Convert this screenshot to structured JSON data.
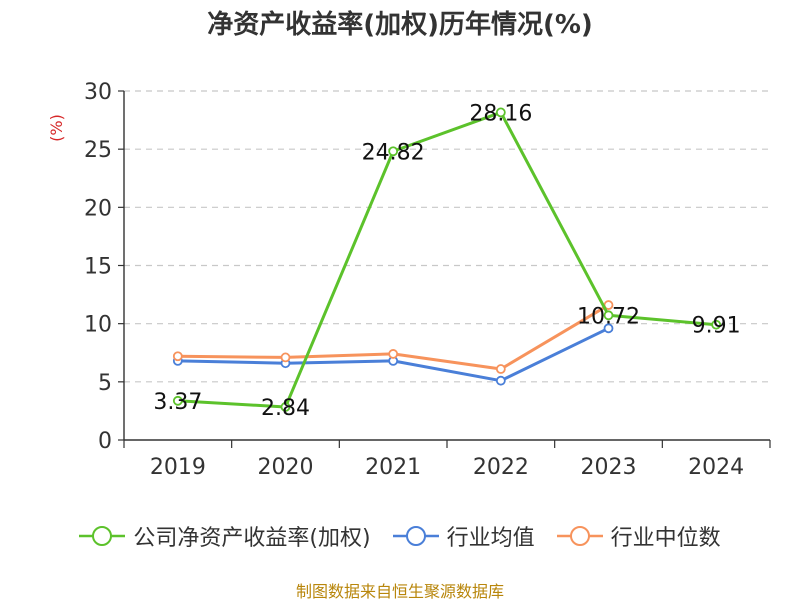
{
  "chart_data": {
    "type": "line",
    "title": "净资产收益率(加权)历年情况(%)",
    "ylabel": "(%)",
    "xlabel": "",
    "categories": [
      "2019",
      "2020",
      "2021",
      "2022",
      "2023",
      "2024"
    ],
    "ylim": [
      0,
      30
    ],
    "yticks": [
      0,
      5,
      10,
      15,
      20,
      25,
      30
    ],
    "grid": true,
    "series": [
      {
        "name": "公司净资产收益率(加权)",
        "color": "#5cc22b",
        "values": [
          3.37,
          2.84,
          24.82,
          28.16,
          10.72,
          9.91
        ],
        "labels": [
          "3.37",
          "2.84",
          "24.82",
          "28.16",
          "10.72",
          "9.91"
        ]
      },
      {
        "name": "行业均值",
        "color": "#4a7fd8",
        "values": [
          6.8,
          6.6,
          6.8,
          5.1,
          9.6,
          null
        ]
      },
      {
        "name": "行业中位数",
        "color": "#f7935c",
        "values": [
          7.2,
          7.1,
          7.4,
          6.1,
          11.6,
          null
        ]
      }
    ],
    "legend_position": "bottom",
    "source": "制图数据来自恒生聚源数据库"
  }
}
